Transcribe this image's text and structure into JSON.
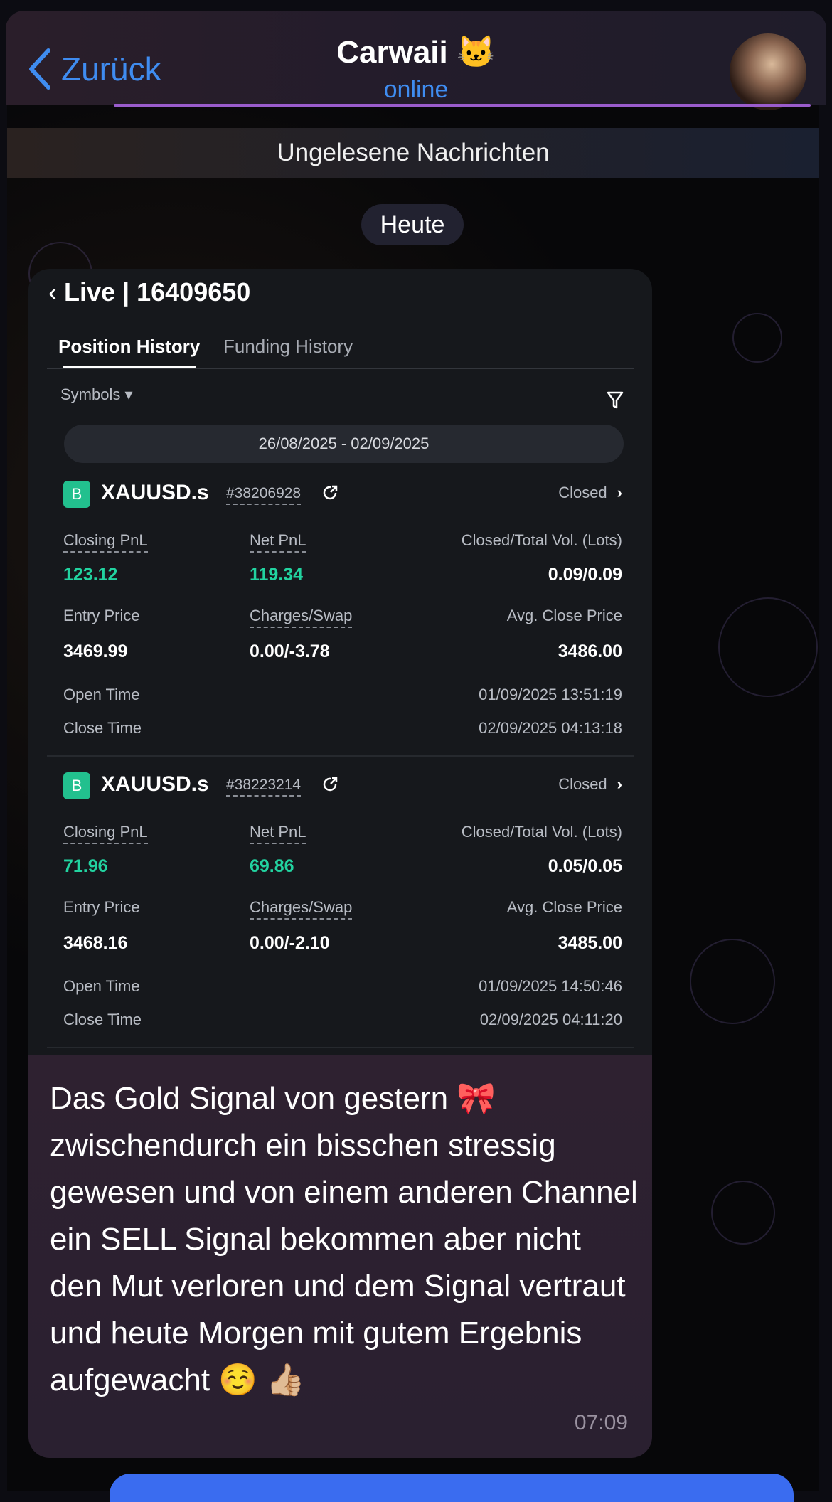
{
  "header": {
    "back_label": "Zurück",
    "title": "Carwaii 🐱",
    "status": "online"
  },
  "chat": {
    "unread_label": "Ungelesene Nachrichten",
    "date_label": "Heute"
  },
  "screenshot": {
    "title": "Live | 16409650",
    "tabs": [
      {
        "label": "Position History",
        "active": true
      },
      {
        "label": "Funding History",
        "active": false
      }
    ],
    "symbols_label": "Symbols ▾",
    "date_range": "26/08/2025 - 02/09/2025",
    "labels": {
      "closing_pnl": "Closing PnL",
      "net_pnl": "Net PnL",
      "volume": "Closed/Total Vol. (Lots)",
      "entry": "Entry Price",
      "charges": "Charges/Swap",
      "avg_close": "Avg. Close Price",
      "open_time": "Open Time",
      "close_time": "Close Time"
    },
    "positions": [
      {
        "side": "B",
        "symbol": "XAUUSD.s",
        "ticket": "#38206928",
        "status": "Closed",
        "closing_pnl": "123.12",
        "net_pnl": "119.34",
        "volume": "0.09/0.09",
        "entry": "3469.99",
        "charges": "0.00/-3.78",
        "avg_close": "3486.00",
        "open_time": "01/09/2025 13:51:19",
        "close_time": "02/09/2025 04:13:18"
      },
      {
        "side": "B",
        "symbol": "XAUUSD.s",
        "ticket": "#38223214",
        "status": "Closed",
        "closing_pnl": "71.96",
        "net_pnl": "69.86",
        "volume": "0.05/0.05",
        "entry": "3468.16",
        "charges": "0.00/-2.10",
        "avg_close": "3485.00",
        "open_time": "01/09/2025 14:50:46",
        "close_time": "02/09/2025 04:11:20"
      }
    ]
  },
  "message": {
    "text": "Das Gold Signal von gestern 🎀 zwischendurch ein bisschen stressig gewesen und von einem anderen Channel ein SELL Signal bekommen aber nicht den Mut verloren und dem Signal vertraut und heute Morgen mit gutem Ergebnis aufgewacht ☺️ 👍🏼",
    "time": "07:09"
  },
  "colors": {
    "accent": "#3f8cf0",
    "profit": "#22d3a0",
    "buy_badge": "#22c08e"
  }
}
